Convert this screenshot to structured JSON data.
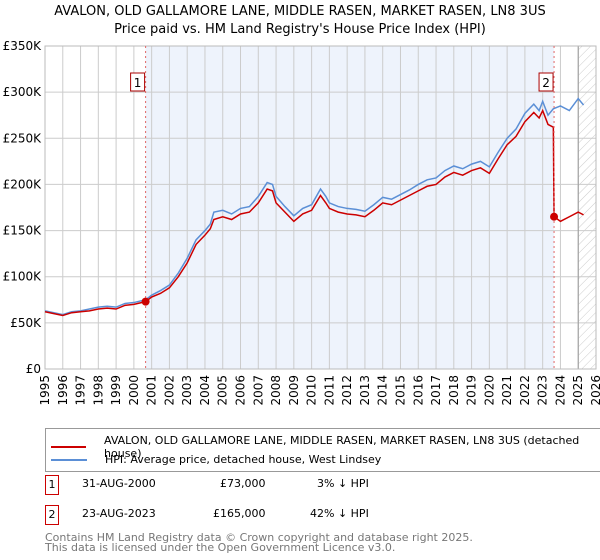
{
  "chart_data": {
    "type": "line",
    "title": "AVALON, OLD GALLAMORE LANE, MIDDLE RASEN, MARKET RASEN, LN8 3US",
    "subtitle": "Price paid vs. HM Land Registry's House Price Index (HPI)",
    "xlim": [
      1995,
      2026
    ],
    "ylim": [
      0,
      350000
    ],
    "x_ticks": [
      "1995",
      "1996",
      "1997",
      "1998",
      "1999",
      "2000",
      "2001",
      "2002",
      "2003",
      "2004",
      "2005",
      "2006",
      "2007",
      "2008",
      "2009",
      "2010",
      "2011",
      "2012",
      "2013",
      "2014",
      "2015",
      "2016",
      "2017",
      "2018",
      "2019",
      "2020",
      "2021",
      "2022",
      "2023",
      "2024",
      "2025",
      "2026"
    ],
    "y_ticks": [
      {
        "v": 0,
        "l": "£0"
      },
      {
        "v": 50000,
        "l": "£50K"
      },
      {
        "v": 100000,
        "l": "£100K"
      },
      {
        "v": 150000,
        "l": "£150K"
      },
      {
        "v": 200000,
        "l": "£200K"
      },
      {
        "v": 250000,
        "l": "£250K"
      },
      {
        "v": 300000,
        "l": "£300K"
      },
      {
        "v": 350000,
        "l": "£350K"
      }
    ],
    "grid": true,
    "series": [
      {
        "name": "AVALON, OLD GALLAMORE LANE, MIDDLE RASEN, MARKET RASEN, LN8 3US (detached house)",
        "color": "#cc0000",
        "x": [
          1995,
          1995.5,
          1996,
          1996.5,
          1997,
          1997.5,
          1998,
          1998.5,
          1999,
          1999.5,
          2000,
          2000.66,
          2001,
          2001.5,
          2002,
          2002.5,
          2003,
          2003.5,
          2004,
          2004.3,
          2004.5,
          2005,
          2005.5,
          2006,
          2006.5,
          2007,
          2007.5,
          2007.8,
          2008,
          2008.5,
          2009,
          2009.5,
          2010,
          2010.5,
          2010.8,
          2011,
          2011.5,
          2012,
          2012.5,
          2013,
          2013.5,
          2014,
          2014.5,
          2015,
          2015.5,
          2016,
          2016.5,
          2017,
          2017.5,
          2018,
          2018.5,
          2019,
          2019.5,
          2020,
          2020.5,
          2021,
          2021.5,
          2022,
          2022.5,
          2022.8,
          2023,
          2023.3,
          2023.6,
          2023.64,
          2024,
          2024.5,
          2025,
          2025.3
        ],
        "y": [
          62000,
          60000,
          58000,
          61000,
          62000,
          63000,
          65000,
          66000,
          65000,
          69000,
          70000,
          73000,
          78000,
          82000,
          88000,
          100000,
          115000,
          135000,
          145000,
          152000,
          162000,
          165000,
          162000,
          168000,
          170000,
          180000,
          195000,
          193000,
          180000,
          170000,
          160000,
          168000,
          172000,
          188000,
          180000,
          174000,
          170000,
          168000,
          167000,
          165000,
          172000,
          180000,
          178000,
          183000,
          188000,
          193000,
          198000,
          200000,
          208000,
          213000,
          210000,
          215000,
          218000,
          212000,
          228000,
          243000,
          252000,
          268000,
          278000,
          272000,
          280000,
          265000,
          262000,
          165000,
          160000,
          165000,
          170000,
          167000
        ]
      },
      {
        "name": "HPI: Average price, detached house, West Lindsey",
        "color": "#5b8fd6",
        "x": [
          1995,
          1995.5,
          1996,
          1996.5,
          1997,
          1997.5,
          1998,
          1998.5,
          1999,
          1999.5,
          2000,
          2000.66,
          2001,
          2001.5,
          2002,
          2002.5,
          2003,
          2003.5,
          2004,
          2004.3,
          2004.5,
          2005,
          2005.5,
          2006,
          2006.5,
          2007,
          2007.5,
          2007.8,
          2008,
          2008.5,
          2009,
          2009.5,
          2010,
          2010.5,
          2010.8,
          2011,
          2011.5,
          2012,
          2012.5,
          2013,
          2013.5,
          2014,
          2014.5,
          2015,
          2015.5,
          2016,
          2016.5,
          2017,
          2017.5,
          2018,
          2018.5,
          2019,
          2019.5,
          2020,
          2020.5,
          2021,
          2021.5,
          2022,
          2022.5,
          2022.8,
          2023,
          2023.3,
          2023.6,
          2024,
          2024.5,
          2025,
          2025.3
        ],
        "y": [
          63000,
          61000,
          59000,
          62000,
          63000,
          65000,
          67000,
          68000,
          67000,
          71000,
          72000,
          75000,
          80000,
          85000,
          91000,
          104000,
          120000,
          140000,
          150000,
          157000,
          170000,
          172000,
          168000,
          174000,
          176000,
          187000,
          202000,
          200000,
          187000,
          176000,
          166000,
          174000,
          178000,
          195000,
          187000,
          180000,
          176000,
          174000,
          173000,
          171000,
          178000,
          186000,
          184000,
          189000,
          194000,
          200000,
          205000,
          207000,
          215000,
          220000,
          217000,
          222000,
          225000,
          219000,
          235000,
          250000,
          260000,
          277000,
          287000,
          280000,
          290000,
          275000,
          282000,
          285000,
          280000,
          293000,
          286000
        ]
      }
    ],
    "annotations": [
      {
        "label": "1",
        "x": 2000.66,
        "y": 73000
      },
      {
        "label": "2",
        "x": 2023.64,
        "y": 165000
      }
    ],
    "forecast_from": 2025
  },
  "legend": {
    "red": "AVALON, OLD GALLAMORE LANE, MIDDLE RASEN, MARKET RASEN, LN8 3US (detached house)",
    "blue": "HPI: Average price, detached house, West Lindsey"
  },
  "sales": [
    {
      "num": "1",
      "date": "31-AUG-2000",
      "price": "£73,000",
      "hpi": "3% ↓ HPI"
    },
    {
      "num": "2",
      "date": "23-AUG-2023",
      "price": "£165,000",
      "hpi": "42% ↓ HPI"
    }
  ],
  "footer": {
    "line1": "Contains HM Land Registry data © Crown copyright and database right 2025.",
    "line2": "This data is licensed under the Open Government Licence v3.0."
  }
}
